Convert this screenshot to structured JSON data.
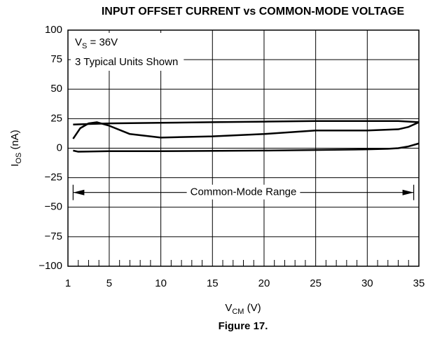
{
  "chart_data": {
    "type": "line",
    "title": "INPUT OFFSET CURRENT vs COMMON-MODE VOLTAGE",
    "xlabel": {
      "text": "V",
      "sub": "CM",
      "rest": " (V)"
    },
    "ylabel": {
      "text": "I",
      "sub": "OS",
      "rest": " (nA)"
    },
    "caption": "Figure 17.",
    "annotations": [
      {
        "text": "V",
        "sub": "S",
        "rest": " = 36V"
      },
      {
        "text": "3 Typical Units Shown"
      }
    ],
    "range_arrow": {
      "label": "Common-Mode Range",
      "x": [
        1.5,
        34.5
      ],
      "y": -37.5
    },
    "xlim": [
      1,
      35
    ],
    "xticks": [
      1,
      5,
      10,
      15,
      20,
      25,
      30,
      35
    ],
    "xminorticks": [
      2,
      3,
      4,
      6,
      7,
      8,
      9,
      11,
      12,
      13,
      14,
      16,
      17,
      18,
      19,
      21,
      22,
      23,
      24,
      26,
      27,
      28,
      29,
      31,
      32,
      33,
      34
    ],
    "ylim": [
      -100,
      100
    ],
    "yticks": [
      {
        "value": -100,
        "label": "−100"
      },
      {
        "value": -75,
        "label": "−75"
      },
      {
        "value": -50,
        "label": "−50"
      },
      {
        "value": -25,
        "label": "−25"
      },
      0,
      25,
      50,
      75,
      100
    ],
    "grid": true,
    "series": [
      {
        "color": "#000000",
        "x": [
          1.5,
          3,
          5,
          10,
          15,
          20,
          25,
          30,
          33,
          35
        ],
        "values": [
          20,
          20.5,
          21,
          21.5,
          22,
          22.5,
          23,
          23,
          23,
          22
        ]
      },
      {
        "color": "#000000",
        "x": [
          1.5,
          2.2,
          3,
          3.8,
          5,
          7,
          10,
          15,
          20,
          25,
          30,
          33,
          34,
          35
        ],
        "values": [
          8,
          17,
          21,
          22,
          19,
          12,
          9,
          10,
          12,
          15,
          15,
          16,
          18,
          22
        ]
      },
      {
        "color": "#000000",
        "x": [
          1.5,
          2,
          5,
          10,
          20,
          30,
          32,
          33,
          34,
          35
        ],
        "values": [
          -2,
          -3,
          -2.5,
          -2.5,
          -2,
          -1,
          -0.5,
          0,
          1.5,
          4
        ]
      }
    ]
  }
}
